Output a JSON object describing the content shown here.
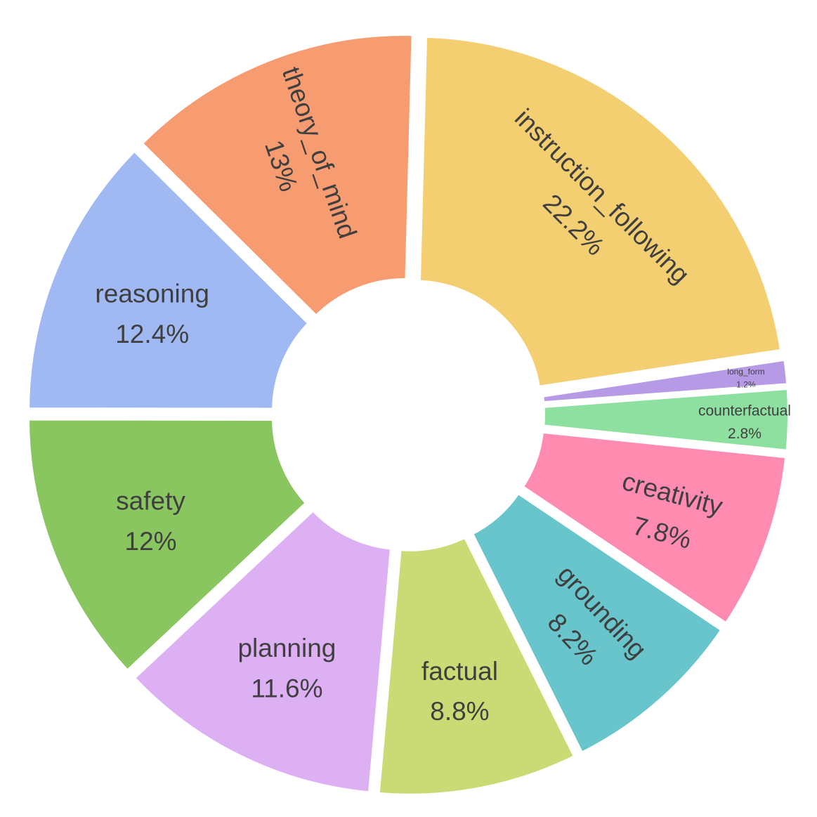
{
  "chart_data": {
    "type": "pie",
    "donut": true,
    "legend": "none",
    "slices": [
      {
        "label": "instruction_following",
        "value": 22.2,
        "pct_text": "22.2%",
        "color": "#f4cf72"
      },
      {
        "label": "long_form",
        "value": 1.2,
        "pct_text": "1.2%",
        "color": "#b69ae6"
      },
      {
        "label": "counterfactual",
        "value": 2.8,
        "pct_text": "2.8%",
        "color": "#8ee0a1"
      },
      {
        "label": "creativity",
        "value": 7.8,
        "pct_text": "7.8%",
        "color": "#ff8bb1"
      },
      {
        "label": "grounding",
        "value": 8.2,
        "pct_text": "8.2%",
        "color": "#67c5cb"
      },
      {
        "label": "factual",
        "value": 8.8,
        "pct_text": "8.8%",
        "color": "#cadb76"
      },
      {
        "label": "planning",
        "value": 11.6,
        "pct_text": "11.6%",
        "color": "#dcb0f2"
      },
      {
        "label": "safety",
        "value": 12,
        "pct_text": "12%",
        "color": "#8ac660"
      },
      {
        "label": "reasoning",
        "value": 12.4,
        "pct_text": "12.4%",
        "color": "#a0b9f3"
      },
      {
        "label": "theory_of_mind",
        "value": 13,
        "pct_text": "13%",
        "color": "#f79c71"
      }
    ]
  }
}
